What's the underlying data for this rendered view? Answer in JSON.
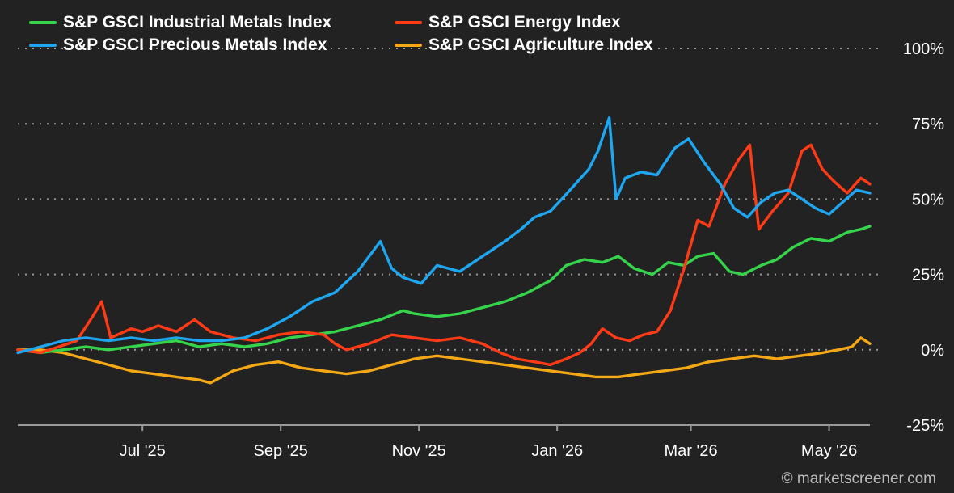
{
  "chart_data": {
    "type": "line",
    "title": "",
    "xlabel": "",
    "ylabel": "",
    "ylim": [
      -25,
      100
    ],
    "y_ticks": [
      -25,
      0,
      25,
      50,
      75,
      100
    ],
    "y_tick_labels": [
      "-25%",
      "0%",
      "25%",
      "50%",
      "75%",
      "100%"
    ],
    "y_axis_side": "right",
    "x_ticks": [
      {
        "label": "Jul '25",
        "x": 55
      },
      {
        "label": "Sep '25",
        "x": 116
      },
      {
        "label": "Nov '25",
        "x": 177
      },
      {
        "label": "Jan '26",
        "x": 238
      },
      {
        "label": "Mar '26",
        "x": 297
      },
      {
        "label": "May '26",
        "x": 358
      }
    ],
    "x_range": [
      0,
      376
    ],
    "grid": "horizontal-dotted",
    "legend_position": "top-left",
    "series": [
      {
        "name": "S&P GSCI Industrial Metals Index",
        "color": "#35d44b",
        "points": [
          [
            0,
            0
          ],
          [
            10,
            -1
          ],
          [
            20,
            0
          ],
          [
            30,
            1
          ],
          [
            40,
            0
          ],
          [
            50,
            1
          ],
          [
            60,
            2
          ],
          [
            70,
            3
          ],
          [
            80,
            1
          ],
          [
            90,
            2
          ],
          [
            100,
            1
          ],
          [
            110,
            2
          ],
          [
            120,
            4
          ],
          [
            130,
            5
          ],
          [
            140,
            6
          ],
          [
            150,
            8
          ],
          [
            160,
            10
          ],
          [
            170,
            13
          ],
          [
            175,
            12
          ],
          [
            185,
            11
          ],
          [
            195,
            12
          ],
          [
            205,
            14
          ],
          [
            215,
            16
          ],
          [
            225,
            19
          ],
          [
            235,
            23
          ],
          [
            242,
            28
          ],
          [
            250,
            30
          ],
          [
            258,
            29
          ],
          [
            265,
            31
          ],
          [
            272,
            27
          ],
          [
            280,
            25
          ],
          [
            287,
            29
          ],
          [
            294,
            28
          ],
          [
            300,
            31
          ],
          [
            307,
            32
          ],
          [
            314,
            26
          ],
          [
            320,
            25
          ],
          [
            328,
            28
          ],
          [
            335,
            30
          ],
          [
            342,
            34
          ],
          [
            350,
            37
          ],
          [
            358,
            36
          ],
          [
            366,
            39
          ],
          [
            372,
            40
          ],
          [
            376,
            41
          ]
        ]
      },
      {
        "name": "S&P GSCI Energy Index",
        "color": "#ff3b17",
        "points": [
          [
            0,
            0
          ],
          [
            10,
            -1
          ],
          [
            18,
            1
          ],
          [
            26,
            3
          ],
          [
            33,
            11
          ],
          [
            37,
            16
          ],
          [
            41,
            4
          ],
          [
            50,
            7
          ],
          [
            55,
            6
          ],
          [
            62,
            8
          ],
          [
            70,
            6
          ],
          [
            78,
            10
          ],
          [
            85,
            6
          ],
          [
            95,
            4
          ],
          [
            105,
            3
          ],
          [
            115,
            5
          ],
          [
            125,
            6
          ],
          [
            135,
            5
          ],
          [
            140,
            2
          ],
          [
            145,
            0
          ],
          [
            155,
            2
          ],
          [
            165,
            5
          ],
          [
            175,
            4
          ],
          [
            185,
            3
          ],
          [
            195,
            4
          ],
          [
            205,
            2
          ],
          [
            213,
            -1
          ],
          [
            220,
            -3
          ],
          [
            228,
            -4
          ],
          [
            235,
            -5
          ],
          [
            242,
            -3
          ],
          [
            248,
            -1
          ],
          [
            253,
            2
          ],
          [
            258,
            7
          ],
          [
            264,
            4
          ],
          [
            270,
            3
          ],
          [
            276,
            5
          ],
          [
            282,
            6
          ],
          [
            288,
            13
          ],
          [
            294,
            27
          ],
          [
            300,
            43
          ],
          [
            305,
            41
          ],
          [
            312,
            55
          ],
          [
            318,
            63
          ],
          [
            323,
            68
          ],
          [
            327,
            40
          ],
          [
            333,
            46
          ],
          [
            340,
            52
          ],
          [
            346,
            66
          ],
          [
            350,
            68
          ],
          [
            355,
            60
          ],
          [
            360,
            56
          ],
          [
            366,
            52
          ],
          [
            372,
            57
          ],
          [
            376,
            55
          ]
        ]
      },
      {
        "name": "S&P GSCI Precious Metals Index",
        "color": "#1ea6f0",
        "points": [
          [
            0,
            -1
          ],
          [
            10,
            1
          ],
          [
            20,
            3
          ],
          [
            30,
            4
          ],
          [
            40,
            3
          ],
          [
            50,
            4
          ],
          [
            60,
            3
          ],
          [
            70,
            4
          ],
          [
            80,
            3
          ],
          [
            90,
            3
          ],
          [
            100,
            4
          ],
          [
            110,
            7
          ],
          [
            120,
            11
          ],
          [
            130,
            16
          ],
          [
            140,
            19
          ],
          [
            150,
            26
          ],
          [
            160,
            36
          ],
          [
            165,
            27
          ],
          [
            170,
            24
          ],
          [
            178,
            22
          ],
          [
            185,
            28
          ],
          [
            195,
            26
          ],
          [
            205,
            31
          ],
          [
            215,
            36
          ],
          [
            222,
            40
          ],
          [
            228,
            44
          ],
          [
            235,
            46
          ],
          [
            240,
            50
          ],
          [
            246,
            55
          ],
          [
            252,
            60
          ],
          [
            256,
            66
          ],
          [
            261,
            77
          ],
          [
            264,
            50
          ],
          [
            268,
            57
          ],
          [
            275,
            59
          ],
          [
            282,
            58
          ],
          [
            290,
            67
          ],
          [
            296,
            70
          ],
          [
            303,
            62
          ],
          [
            310,
            55
          ],
          [
            316,
            47
          ],
          [
            322,
            44
          ],
          [
            328,
            49
          ],
          [
            334,
            52
          ],
          [
            340,
            53
          ],
          [
            346,
            50
          ],
          [
            352,
            47
          ],
          [
            358,
            45
          ],
          [
            364,
            49
          ],
          [
            370,
            53
          ],
          [
            376,
            52
          ]
        ]
      },
      {
        "name": "S&P GSCI Agriculture Index",
        "color": "#f5a815",
        "points": [
          [
            0,
            0
          ],
          [
            10,
            0
          ],
          [
            20,
            -1
          ],
          [
            30,
            -3
          ],
          [
            40,
            -5
          ],
          [
            50,
            -7
          ],
          [
            60,
            -8
          ],
          [
            70,
            -9
          ],
          [
            80,
            -10
          ],
          [
            85,
            -11
          ],
          [
            95,
            -7
          ],
          [
            105,
            -5
          ],
          [
            115,
            -4
          ],
          [
            125,
            -6
          ],
          [
            135,
            -7
          ],
          [
            145,
            -8
          ],
          [
            155,
            -7
          ],
          [
            165,
            -5
          ],
          [
            175,
            -3
          ],
          [
            185,
            -2
          ],
          [
            195,
            -3
          ],
          [
            205,
            -4
          ],
          [
            215,
            -5
          ],
          [
            225,
            -6
          ],
          [
            235,
            -7
          ],
          [
            245,
            -8
          ],
          [
            255,
            -9
          ],
          [
            265,
            -9
          ],
          [
            275,
            -8
          ],
          [
            285,
            -7
          ],
          [
            295,
            -6
          ],
          [
            305,
            -4
          ],
          [
            315,
            -3
          ],
          [
            325,
            -2
          ],
          [
            335,
            -3
          ],
          [
            345,
            -2
          ],
          [
            355,
            -1
          ],
          [
            362,
            0
          ],
          [
            368,
            1
          ],
          [
            372,
            4
          ],
          [
            376,
            2
          ]
        ]
      }
    ]
  },
  "credit": "© marketscreener.com"
}
